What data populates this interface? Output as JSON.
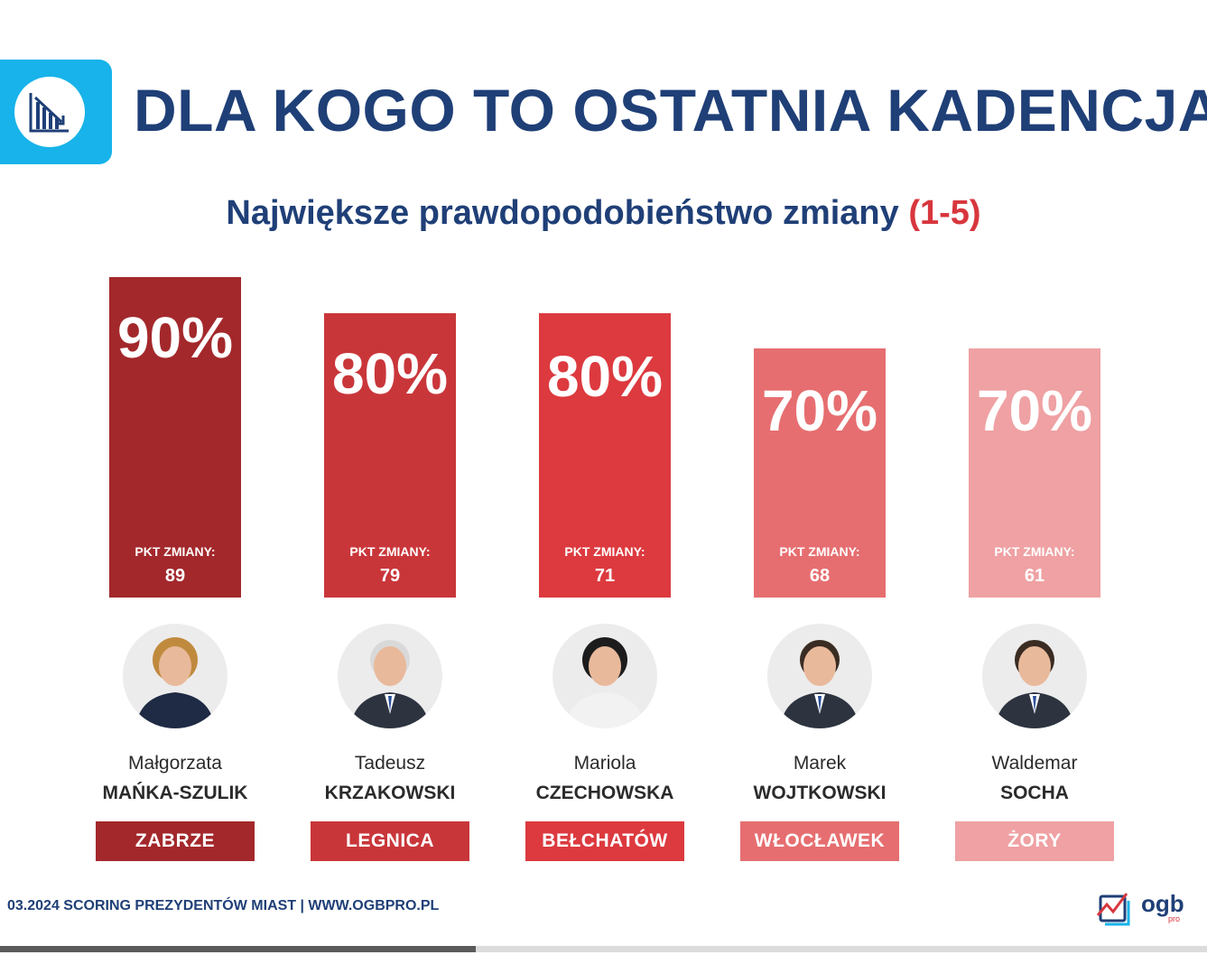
{
  "header": {
    "title": "DLA KOGO TO OSTATNIA KADENCJA?",
    "icon": "chart-down-icon",
    "icon_color": "#17b3ea"
  },
  "subtitle": {
    "text": "Największe prawdopodobieństwo zmiany",
    "range": "(1-5)"
  },
  "chart_data": {
    "type": "bar",
    "title": "DLA KOGO TO OSTATNIA KADENCJA?",
    "subtitle": "Największe prawdopodobieństwo zmiany (1-5)",
    "pkt_label": "PKT ZMIANY:",
    "categories": [
      "Małgorzata MAŃKA-SZULIK",
      "Tadeusz KRZAKOWSKI",
      "Mariola CZECHOWSKA",
      "Marek WOJTKOWSKI",
      "Waldemar SOCHA"
    ],
    "values": [
      90,
      80,
      80,
      70,
      70
    ],
    "value_labels": [
      "90%",
      "80%",
      "80%",
      "70%",
      "70%"
    ],
    "pkt_values": [
      "89",
      "79",
      "71",
      "68",
      "61"
    ],
    "ylim": [
      0,
      100
    ],
    "grid": false,
    "legend": "none",
    "colors": [
      "#a3282b",
      "#c9363a",
      "#dc3a3f",
      "#e66e70",
      "#efa1a3"
    ]
  },
  "candidates": [
    {
      "first_name": "Małgorzata",
      "last_name": "MAŃKA-SZULIK",
      "city": "ZABRZE",
      "avatar": "woman-portrait-icon"
    },
    {
      "first_name": "Tadeusz",
      "last_name": "KRZAKOWSKI",
      "city": "LEGNICA",
      "avatar": "man-portrait-icon"
    },
    {
      "first_name": "Mariola",
      "last_name": "CZECHOWSKA",
      "city": "BEŁCHATÓW",
      "avatar": "woman-portrait-icon"
    },
    {
      "first_name": "Marek",
      "last_name": "WOJTKOWSKI",
      "city": "WŁOCŁAWEK",
      "avatar": "man-portrait-icon"
    },
    {
      "first_name": "Waldemar",
      "last_name": "SOCHA",
      "city": "ŻORY",
      "avatar": "man-portrait-icon"
    }
  ],
  "footer": {
    "text": "03.2024 SCORING PREZYDENTÓW MIAST | WWW.OGBPRO.PL",
    "logo_text": "ogb",
    "logo_sub": "pro",
    "progress": 0.394
  }
}
